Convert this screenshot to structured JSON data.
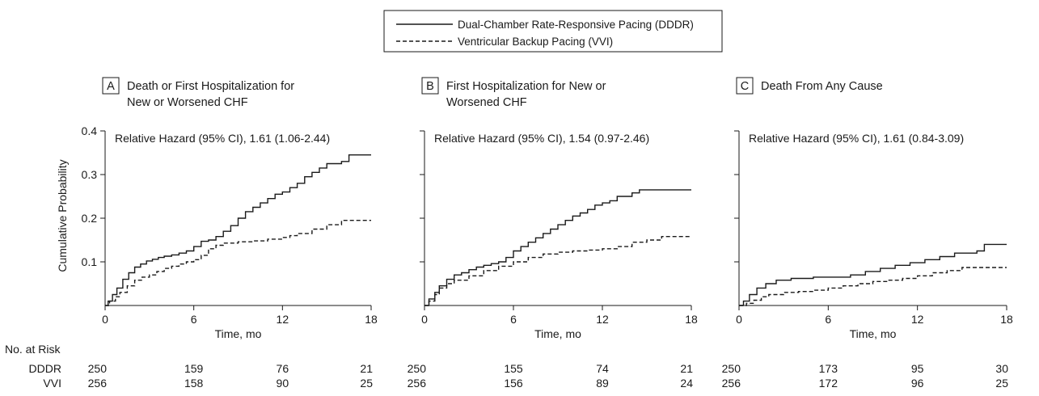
{
  "legend": {
    "items": [
      {
        "label": "Dual-Chamber Rate-Responsive Pacing (DDDR)",
        "style": "solid"
      },
      {
        "label": "Ventricular Backup Pacing (VVI)",
        "style": "dashed"
      }
    ]
  },
  "risk_table": {
    "header": "No. at Risk",
    "groups": [
      "DDDR",
      "VVI"
    ]
  },
  "chart_data": [
    {
      "type": "line",
      "panel_letter": "A",
      "title_lines": [
        "Death or First Hospitalization for",
        "New or Worsened CHF"
      ],
      "annotation": "Relative Hazard (95% CI), 1.61 (1.06-2.44)",
      "xlabel": "Time, mo",
      "ylabel": "Cumulative Probability",
      "xlim": [
        0,
        18
      ],
      "ylim": [
        0,
        0.4
      ],
      "xticks": [
        0,
        6,
        12,
        18
      ],
      "yticks": [
        0.1,
        0.2,
        0.3,
        0.4
      ],
      "ytick_labels": [
        "0.1",
        "0.2",
        "0.3",
        "0.4"
      ],
      "series": [
        {
          "name": "DDDR",
          "style": "solid",
          "x": [
            0,
            0.2,
            0.5,
            0.8,
            1.2,
            1.6,
            2.0,
            2.4,
            2.8,
            3.2,
            3.6,
            4.0,
            4.5,
            5.0,
            5.5,
            6.0,
            6.5,
            7.0,
            7.5,
            8.0,
            8.5,
            9.0,
            9.5,
            10.0,
            10.5,
            11.0,
            11.5,
            12.0,
            12.5,
            13.0,
            13.5,
            14.0,
            14.5,
            15.0,
            16.0,
            16.5,
            18.0
          ],
          "y": [
            0,
            0.01,
            0.025,
            0.04,
            0.06,
            0.075,
            0.088,
            0.095,
            0.102,
            0.106,
            0.11,
            0.113,
            0.116,
            0.12,
            0.125,
            0.135,
            0.147,
            0.15,
            0.158,
            0.17,
            0.183,
            0.2,
            0.215,
            0.225,
            0.235,
            0.245,
            0.255,
            0.26,
            0.27,
            0.28,
            0.295,
            0.305,
            0.315,
            0.325,
            0.33,
            0.345,
            0.345
          ]
        },
        {
          "name": "VVI",
          "style": "dashed",
          "x": [
            0,
            0.3,
            0.7,
            1.0,
            1.5,
            2.0,
            2.5,
            3.0,
            3.5,
            4.0,
            4.5,
            5.0,
            5.5,
            6.0,
            6.5,
            7.0,
            7.5,
            8.0,
            9.0,
            10.0,
            11.0,
            12.0,
            12.5,
            13.0,
            14.0,
            15.0,
            16.0,
            18.0
          ],
          "y": [
            0,
            0.01,
            0.02,
            0.03,
            0.045,
            0.058,
            0.065,
            0.07,
            0.078,
            0.085,
            0.09,
            0.095,
            0.1,
            0.105,
            0.115,
            0.13,
            0.138,
            0.143,
            0.146,
            0.148,
            0.152,
            0.156,
            0.16,
            0.165,
            0.175,
            0.185,
            0.195,
            0.195
          ]
        }
      ],
      "at_risk": {
        "x": [
          0,
          6,
          12,
          18
        ],
        "DDDR": [
          250,
          159,
          76,
          21
        ],
        "VVI": [
          256,
          158,
          90,
          25
        ]
      }
    },
    {
      "type": "line",
      "panel_letter": "B",
      "title_lines": [
        "First Hospitalization for New or",
        "Worsened CHF"
      ],
      "annotation": "Relative Hazard (95% CI), 1.54 (0.97-2.46)",
      "xlabel": "Time, mo",
      "ylabel": "",
      "xlim": [
        0,
        18
      ],
      "ylim": [
        0,
        0.4
      ],
      "xticks": [
        0,
        6,
        12,
        18
      ],
      "yticks": [
        0.1,
        0.2,
        0.3,
        0.4
      ],
      "ytick_labels": [],
      "series": [
        {
          "name": "DDDR",
          "style": "solid",
          "x": [
            0,
            0.3,
            0.7,
            1.0,
            1.5,
            2.0,
            2.5,
            3.0,
            3.5,
            4.0,
            4.5,
            5.0,
            5.5,
            6.0,
            6.5,
            7.0,
            7.5,
            8.0,
            8.5,
            9.0,
            9.5,
            10.0,
            10.5,
            11.0,
            11.5,
            12.0,
            12.5,
            13.0,
            14.0,
            14.5,
            18.0
          ],
          "y": [
            0,
            0.015,
            0.03,
            0.045,
            0.06,
            0.07,
            0.075,
            0.082,
            0.088,
            0.092,
            0.096,
            0.1,
            0.11,
            0.125,
            0.135,
            0.145,
            0.155,
            0.165,
            0.175,
            0.185,
            0.195,
            0.205,
            0.212,
            0.22,
            0.23,
            0.235,
            0.24,
            0.25,
            0.258,
            0.265,
            0.265
          ]
        },
        {
          "name": "VVI",
          "style": "dashed",
          "x": [
            0,
            0.3,
            0.7,
            1.0,
            1.5,
            2.0,
            3.0,
            4.0,
            5.0,
            6.0,
            7.0,
            8.0,
            9.0,
            10.0,
            11.0,
            12.0,
            13.0,
            14.0,
            15.0,
            16.0,
            18.0
          ],
          "y": [
            0,
            0.01,
            0.025,
            0.04,
            0.05,
            0.058,
            0.068,
            0.08,
            0.09,
            0.1,
            0.11,
            0.118,
            0.122,
            0.125,
            0.127,
            0.13,
            0.135,
            0.145,
            0.15,
            0.158,
            0.158
          ]
        }
      ],
      "at_risk": {
        "x": [
          0,
          6,
          12,
          18
        ],
        "DDDR": [
          250,
          155,
          74,
          21
        ],
        "VVI": [
          256,
          156,
          89,
          24
        ]
      }
    },
    {
      "type": "line",
      "panel_letter": "C",
      "title_lines": [
        "Death From Any Cause"
      ],
      "annotation": "Relative Hazard (95% CI), 1.61 (0.84-3.09)",
      "xlabel": "Time, mo",
      "ylabel": "",
      "xlim": [
        0,
        18
      ],
      "ylim": [
        0,
        0.4
      ],
      "xticks": [
        0,
        6,
        12,
        18
      ],
      "yticks": [
        0.1,
        0.2,
        0.3,
        0.4
      ],
      "ytick_labels": [],
      "series": [
        {
          "name": "DDDR",
          "style": "solid",
          "x": [
            0,
            0.3,
            0.7,
            1.2,
            1.8,
            2.5,
            3.5,
            5.0,
            6.0,
            7.5,
            8.5,
            9.5,
            10.5,
            11.5,
            12.5,
            13.5,
            14.5,
            16.0,
            16.5,
            18.0
          ],
          "y": [
            0,
            0.01,
            0.025,
            0.04,
            0.05,
            0.058,
            0.062,
            0.065,
            0.065,
            0.07,
            0.078,
            0.085,
            0.092,
            0.098,
            0.105,
            0.112,
            0.12,
            0.125,
            0.14,
            0.14
          ]
        },
        {
          "name": "VVI",
          "style": "dashed",
          "x": [
            0,
            0.5,
            1.0,
            1.5,
            2.0,
            3.0,
            4.0,
            5.0,
            6.0,
            7.0,
            8.0,
            9.0,
            10.0,
            11.0,
            12.0,
            13.0,
            14.0,
            15.0,
            18.0
          ],
          "y": [
            0,
            0.005,
            0.012,
            0.02,
            0.025,
            0.03,
            0.032,
            0.035,
            0.04,
            0.045,
            0.05,
            0.055,
            0.058,
            0.062,
            0.068,
            0.075,
            0.08,
            0.087,
            0.087
          ]
        }
      ],
      "at_risk": {
        "x": [
          0,
          6,
          12,
          18
        ],
        "DDDR": [
          250,
          173,
          95,
          30
        ],
        "VVI": [
          256,
          172,
          96,
          25
        ]
      }
    }
  ]
}
